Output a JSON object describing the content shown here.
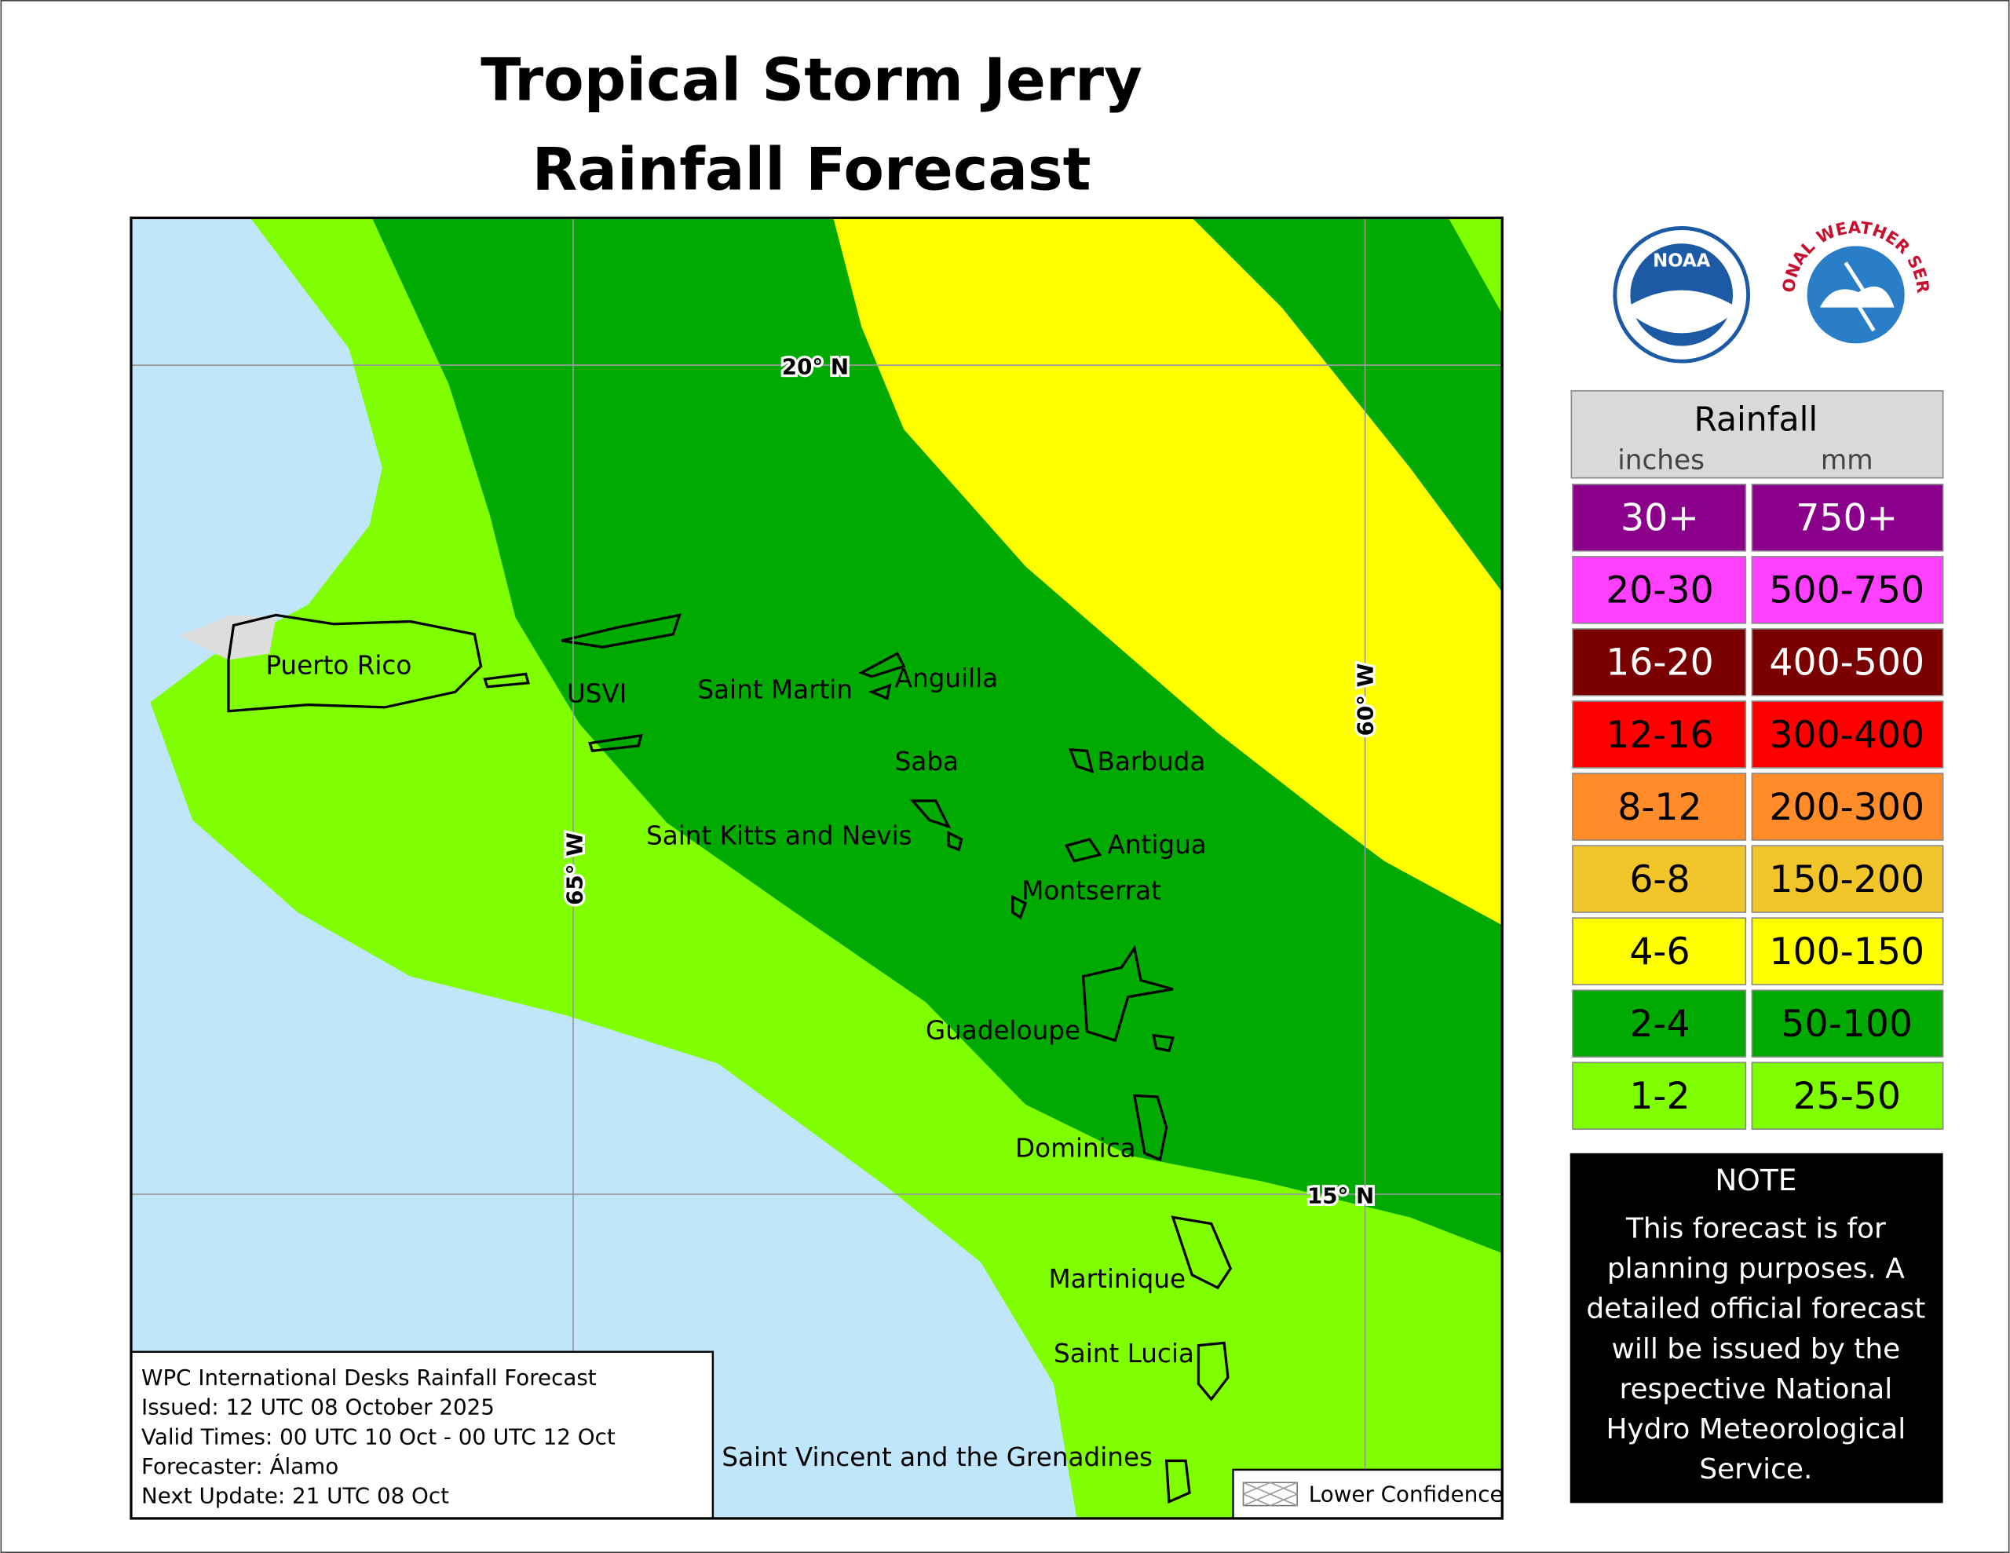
{
  "title": [
    "Tropical Storm Jerry",
    "Rainfall Forecast"
  ],
  "map": {
    "grid_labels": [
      "20° N",
      "15° N",
      "65° W",
      "60° W"
    ],
    "places": [
      "Puerto Rico",
      "USVI",
      "Saint Martin",
      "Anguilla",
      "Saba",
      "Barbuda",
      "Saint Kitts and Nevis",
      "Antigua",
      "Montserrat",
      "Guadeloupe",
      "Dominica",
      "Martinique",
      "Saint Lucia",
      "Saint Vincent and the Grenadines"
    ]
  },
  "info": [
    "WPC International Desks Rainfall Forecast",
    "Issued: 12 UTC 08 October 2025",
    "Valid Times: 00 UTC 10 Oct - 00 UTC 12 Oct",
    "Forecaster: Álamo",
    "Next Update: 21 UTC 08 Oct"
  ],
  "lower_confidence": "Lower Confidence",
  "logos": {
    "noaa": "NOAA",
    "nws": "NATIONAL WEATHER SERVICE"
  },
  "legend": {
    "title": "Rainfall",
    "units": [
      "inches",
      "mm"
    ],
    "rows": [
      {
        "inches": "30+",
        "mm": "750+",
        "color": "#8b008b",
        "text_color": "#ffffff"
      },
      {
        "inches": "20-30",
        "mm": "500-750",
        "color": "#ff40ff",
        "text_color": "#000000"
      },
      {
        "inches": "16-20",
        "mm": "400-500",
        "color": "#7a0000",
        "text_color": "#ffffff"
      },
      {
        "inches": "12-16",
        "mm": "300-400",
        "color": "#ff0000",
        "text_color": "#000000"
      },
      {
        "inches": "8-12",
        "mm": "200-300",
        "color": "#ff8c28",
        "text_color": "#000000"
      },
      {
        "inches": "6-8",
        "mm": "150-200",
        "color": "#f2c62a",
        "text_color": "#000000"
      },
      {
        "inches": "4-6",
        "mm": "100-150",
        "color": "#ffff00",
        "text_color": "#000000"
      },
      {
        "inches": "2-4",
        "mm": "50-100",
        "color": "#00aa00",
        "text_color": "#000000"
      },
      {
        "inches": "1-2",
        "mm": "25-50",
        "color": "#7fff00",
        "text_color": "#000000"
      }
    ]
  },
  "note": {
    "title": "NOTE",
    "lines": [
      "This forecast is for",
      "planning purposes. A",
      "detailed official forecast",
      "will be issued by the",
      "respective National",
      "Hydro Meteorological",
      "Service."
    ]
  }
}
